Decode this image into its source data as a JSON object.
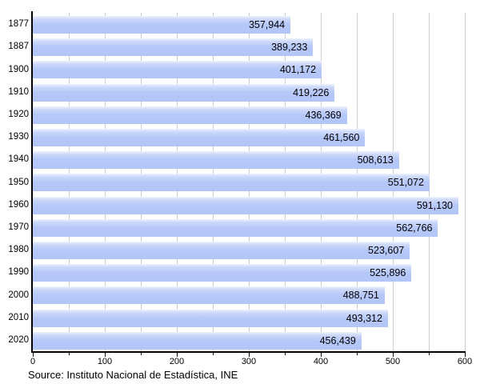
{
  "chart_data": {
    "type": "bar",
    "orientation": "horizontal",
    "title": "",
    "xlabel": "",
    "ylabel": "",
    "categories": [
      "1877",
      "1887",
      "1900",
      "1910",
      "1920",
      "1930",
      "1940",
      "1950",
      "1960",
      "1970",
      "1980",
      "1990",
      "2000",
      "2010",
      "2020"
    ],
    "values": [
      357944,
      389233,
      401172,
      419226,
      436369,
      461560,
      508613,
      551072,
      591130,
      562766,
      523607,
      525896,
      488751,
      493312,
      456439
    ],
    "value_labels": [
      "357,944",
      "389,233",
      "401,172",
      "419,226",
      "436,369",
      "461,560",
      "508,613",
      "551,072",
      "591,130",
      "562,766",
      "523,607",
      "525,896",
      "488,751",
      "493,312",
      "456,439"
    ],
    "xlim": [
      0,
      600
    ],
    "x_tick_labels": [
      "0",
      "100",
      "200",
      "300",
      "400",
      "500",
      "600"
    ],
    "x_major_tick_step": 100,
    "x_minor_tick_step": 50,
    "grid": true,
    "legend": "none",
    "source": "Source: Instituto Nacional de Estadística, INE",
    "colors": {
      "bar": "#b4c7f7",
      "bar_highlight": "#edf2fe",
      "gridline": "#cccccc",
      "axis": "#000000",
      "text": "#000000",
      "background": "#ffffff"
    }
  }
}
